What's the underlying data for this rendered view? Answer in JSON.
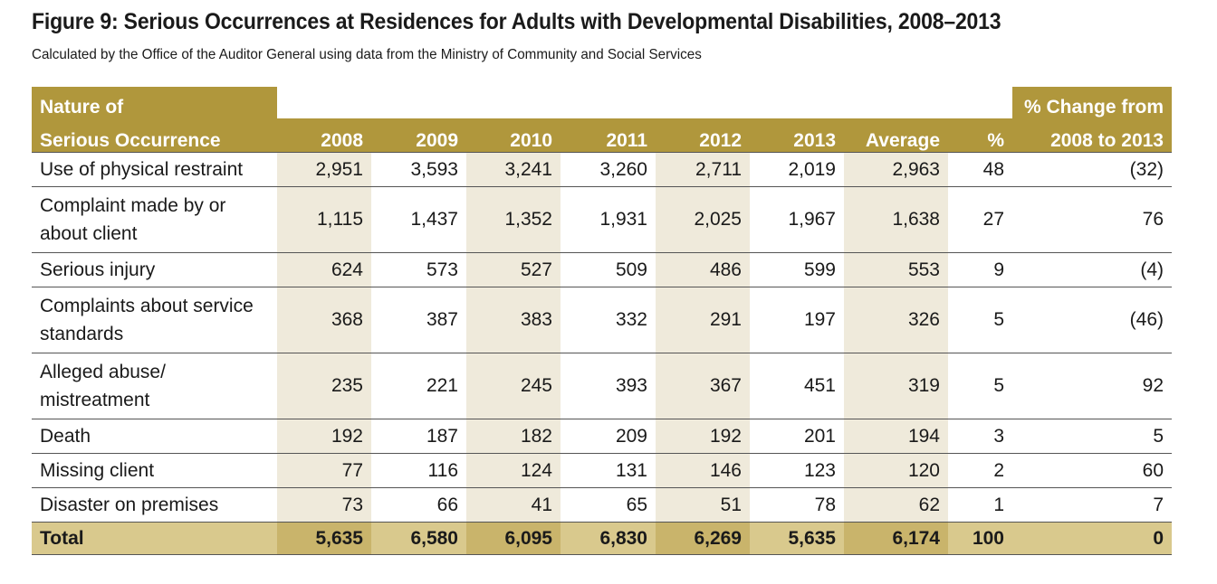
{
  "figure": {
    "title": "Figure 9: Serious Occurrences at Residences for Adults with Developmental Disabilities, 2008–2013",
    "subtitle": "Calculated by the Office of the Auditor General using data from the Ministry of Community and Social Services"
  },
  "header": {
    "label_line1": "Nature of",
    "label_line2": "Serious Occurrence",
    "change_line1": "% Change from",
    "change_line2": "2008 to 2013",
    "columns": [
      "2008",
      "2009",
      "2010",
      "2011",
      "2012",
      "2013",
      "Average",
      "%"
    ]
  },
  "rows": [
    {
      "label": "Use of physical restraint",
      "values": [
        "2,951",
        "3,593",
        "3,241",
        "3,260",
        "2,711",
        "2,019",
        "2,963",
        "48"
      ],
      "change": "(32)"
    },
    {
      "label": "Complaint made by or about client",
      "values": [
        "1,115",
        "1,437",
        "1,352",
        "1,931",
        "2,025",
        "1,967",
        "1,638",
        "27"
      ],
      "change": "76"
    },
    {
      "label": "Serious injury",
      "values": [
        "624",
        "573",
        "527",
        "509",
        "486",
        "599",
        "553",
        "9"
      ],
      "change": "(4)"
    },
    {
      "label": "Complaints about service standards",
      "values": [
        "368",
        "387",
        "383",
        "332",
        "291",
        "197",
        "326",
        "5"
      ],
      "change": "(46)"
    },
    {
      "label": "Alleged abuse/ mistreatment",
      "values": [
        "235",
        "221",
        "245",
        "393",
        "367",
        "451",
        "319",
        "5"
      ],
      "change": "92"
    },
    {
      "label": "Death",
      "values": [
        "192",
        "187",
        "182",
        "209",
        "192",
        "201",
        "194",
        "3"
      ],
      "change": "5"
    },
    {
      "label": "Missing client",
      "values": [
        "77",
        "116",
        "124",
        "131",
        "146",
        "123",
        "120",
        "2"
      ],
      "change": "60"
    },
    {
      "label": "Disaster on premises",
      "values": [
        "73",
        "66",
        "41",
        "65",
        "51",
        "78",
        "62",
        "1"
      ],
      "change": "7"
    }
  ],
  "total": {
    "label": "Total",
    "values": [
      "5,635",
      "6,580",
      "6,095",
      "6,830",
      "6,269",
      "5,635",
      "6,174",
      "100"
    ],
    "change": "0"
  },
  "colors": {
    "header_gold": "#b0973c",
    "column_shade": "#efeadb",
    "total_row": "#d9c98d",
    "total_shade": "#c9b46b"
  }
}
